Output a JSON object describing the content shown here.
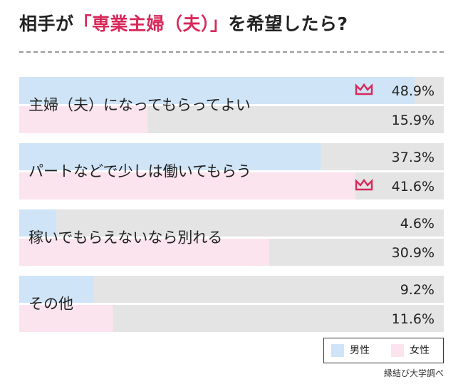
{
  "title": {
    "before": "相手が",
    "highlight": "「専業主婦（夫）」",
    "after": "を希望したら?"
  },
  "legend": {
    "male": "男性",
    "female": "女性"
  },
  "source": "縁結び大学調べ",
  "colors": {
    "male": "#cfe4f7",
    "female": "#fbe4ee",
    "track": "#e4e4e4",
    "crown": "#d8285a",
    "title_accent": "#d8285a"
  },
  "chart_data": {
    "type": "bar",
    "orientation": "horizontal",
    "xlim": [
      0,
      52.5
    ],
    "categories": [
      "主婦（夫）になってもらってよい",
      "パートなどで少しは働いてもらう",
      "稼いでもらえないなら別れる",
      "その他"
    ],
    "series": [
      {
        "name": "男性",
        "values": [
          48.9,
          37.3,
          4.6,
          9.2
        ],
        "labels": [
          "48.9%",
          "37.3%",
          "4.6%",
          "9.2%"
        ]
      },
      {
        "name": "女性",
        "values": [
          15.9,
          41.6,
          30.9,
          11.6
        ],
        "labels": [
          "15.9%",
          "41.6%",
          "30.9%",
          "11.6%"
        ]
      }
    ],
    "highlight": [
      {
        "category": 0,
        "series": 0,
        "icon": "crown-icon"
      },
      {
        "category": 1,
        "series": 1,
        "icon": "crown-icon"
      }
    ]
  }
}
